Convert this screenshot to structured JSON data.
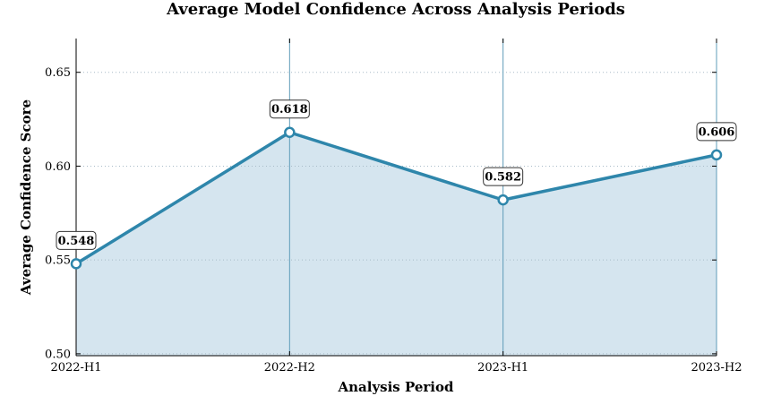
{
  "chart_data": {
    "type": "line",
    "title": "Average Model Confidence Across Analysis Periods",
    "xlabel": "Analysis Period",
    "ylabel": "Average Confidence Score",
    "categories": [
      "2022-H1",
      "2022-H2",
      "2023-H1",
      "2023-H2"
    ],
    "series": [
      {
        "values": [
          0.548,
          0.618,
          0.582,
          0.606
        ]
      }
    ],
    "data_labels": [
      "0.548",
      "0.618",
      "0.582",
      "0.606"
    ],
    "yticks": [
      0.5,
      0.55,
      0.6,
      0.65
    ],
    "ytick_labels": [
      "0.50",
      "0.55",
      "0.60",
      "0.65"
    ],
    "ylim": [
      0.499,
      0.668
    ],
    "grid": "y-dotted",
    "colors": {
      "line": "#2e86ab",
      "fill": "#d5e5ef",
      "marker_face": "#ffffff",
      "vline": "#5f9cb8"
    }
  }
}
